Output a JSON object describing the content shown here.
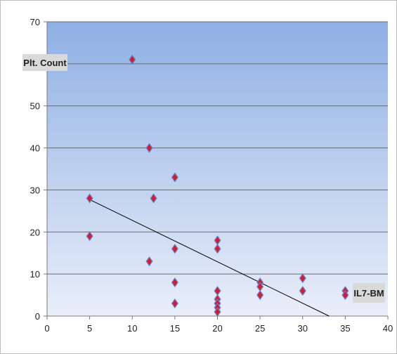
{
  "chart_data": {
    "type": "scatter",
    "title": "",
    "xlabel": "IL7-BM",
    "ylabel": "Plt. Count",
    "xlim": [
      0,
      40
    ],
    "ylim": [
      0,
      70
    ],
    "x_ticks": [
      0,
      5,
      10,
      15,
      20,
      25,
      30,
      35,
      40
    ],
    "y_ticks": [
      0,
      10,
      20,
      30,
      40,
      50,
      60,
      70
    ],
    "grid": "horizontal",
    "legend": "none",
    "series": [
      {
        "points": [
          {
            "x": 5,
            "y": 28
          },
          {
            "x": 5,
            "y": 19
          },
          {
            "x": 10,
            "y": 61
          },
          {
            "x": 12,
            "y": 40
          },
          {
            "x": 12,
            "y": 13
          },
          {
            "x": 12.5,
            "y": 28
          },
          {
            "x": 15,
            "y": 33
          },
          {
            "x": 15,
            "y": 16
          },
          {
            "x": 15,
            "y": 8
          },
          {
            "x": 15,
            "y": 3
          },
          {
            "x": 20,
            "y": 18
          },
          {
            "x": 20,
            "y": 16
          },
          {
            "x": 20,
            "y": 6
          },
          {
            "x": 20,
            "y": 4
          },
          {
            "x": 20,
            "y": 3
          },
          {
            "x": 20,
            "y": 2
          },
          {
            "x": 20,
            "y": 1
          },
          {
            "x": 25,
            "y": 8
          },
          {
            "x": 25,
            "y": 7
          },
          {
            "x": 25,
            "y": 5
          },
          {
            "x": 30,
            "y": 9
          },
          {
            "x": 30,
            "y": 6
          },
          {
            "x": 35,
            "y": 6
          },
          {
            "x": 35,
            "y": 5
          }
        ]
      }
    ],
    "trendline": {
      "x_start": 5,
      "y_start": 27.7,
      "x_end": 33.1,
      "y_end": 0
    },
    "colors": {
      "plot_bg_top": "#8fb0e4",
      "plot_bg_bottom": "#e9eef9",
      "marker_outer": "#5b7fd0",
      "marker_inner": "#e8141c",
      "trendline": "#000000",
      "gridline": "#6b6b6b",
      "label_box": "#d9d9d9"
    }
  }
}
